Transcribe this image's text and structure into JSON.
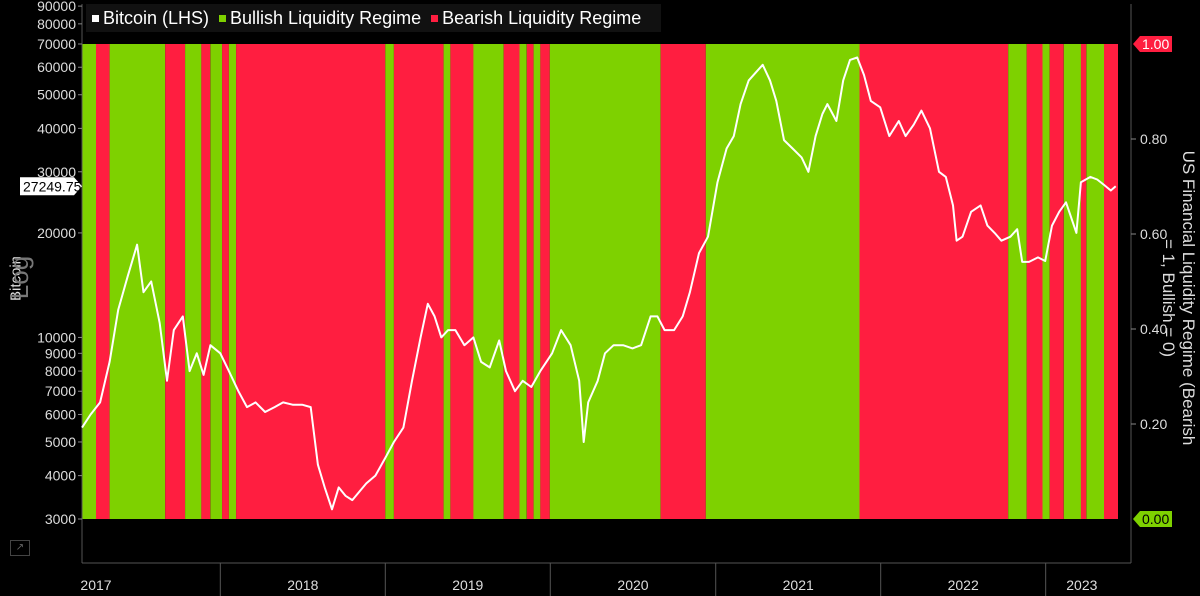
{
  "chart_data": {
    "type": "line",
    "legend": [
      {
        "name": "Bitcoin (LHS)",
        "color": "#ffffff"
      },
      {
        "name": "Bullish Liquidity Regime",
        "color": "#7ed100"
      },
      {
        "name": "Bearish Liquidity Regime",
        "color": "#ff1e40"
      }
    ],
    "left_axis": {
      "title": "Bitcoin",
      "scale_note": "Log",
      "scale": "log",
      "ylim": [
        3000,
        90000
      ],
      "ticks": [
        "90000",
        "80000",
        "70000",
        "60000",
        "50000",
        "40000",
        "30000",
        "20000",
        "10000",
        "9000",
        "8000",
        "7000",
        "6000",
        "5000",
        "4000",
        "3000"
      ],
      "last_value_label": "27249.75"
    },
    "right_axis": {
      "title": "US Financial Liquidity Regime (Bearish = 1, Bullish = 0)",
      "ticks": [
        "0.20",
        "0.40",
        "0.60",
        "0.80"
      ],
      "badge_top": "1.00",
      "badge_bottom": "0.00",
      "ylim": [
        0,
        1
      ]
    },
    "x_axis": {
      "labels": [
        "2017",
        "2018",
        "2019",
        "2020",
        "2021",
        "2022",
        "2023"
      ],
      "xlim": [
        "2017-03",
        "2023-06-10"
      ]
    },
    "regimes": [
      {
        "start": "2017-03-01",
        "end": "2017-04-01",
        "state": "bullish"
      },
      {
        "start": "2017-04-01",
        "end": "2017-05-01",
        "state": "bearish"
      },
      {
        "start": "2017-05-01",
        "end": "2017-09-01",
        "state": "bullish"
      },
      {
        "start": "2017-09-01",
        "end": "2017-10-15",
        "state": "bearish"
      },
      {
        "start": "2017-10-15",
        "end": "2017-11-20",
        "state": "bullish"
      },
      {
        "start": "2017-11-20",
        "end": "2017-12-10",
        "state": "bearish"
      },
      {
        "start": "2017-12-10",
        "end": "2018-01-05",
        "state": "bullish"
      },
      {
        "start": "2018-01-05",
        "end": "2018-01-20",
        "state": "bearish"
      },
      {
        "start": "2018-01-20",
        "end": "2018-02-05",
        "state": "bullish"
      },
      {
        "start": "2018-02-05",
        "end": "2019-01-01",
        "state": "bearish"
      },
      {
        "start": "2019-01-01",
        "end": "2019-01-20",
        "state": "bullish"
      },
      {
        "start": "2019-01-20",
        "end": "2019-05-10",
        "state": "bearish"
      },
      {
        "start": "2019-05-10",
        "end": "2019-05-25",
        "state": "bullish"
      },
      {
        "start": "2019-05-25",
        "end": "2019-07-15",
        "state": "bearish"
      },
      {
        "start": "2019-07-15",
        "end": "2019-09-20",
        "state": "bullish"
      },
      {
        "start": "2019-09-20",
        "end": "2019-10-25",
        "state": "bearish"
      },
      {
        "start": "2019-10-25",
        "end": "2019-11-10",
        "state": "bullish"
      },
      {
        "start": "2019-11-10",
        "end": "2019-11-25",
        "state": "bearish"
      },
      {
        "start": "2019-11-25",
        "end": "2019-12-10",
        "state": "bullish"
      },
      {
        "start": "2019-12-10",
        "end": "2019-12-31",
        "state": "bearish"
      },
      {
        "start": "2019-12-31",
        "end": "2020-09-01",
        "state": "bullish"
      },
      {
        "start": "2020-09-01",
        "end": "2020-12-10",
        "state": "bearish"
      },
      {
        "start": "2020-12-10",
        "end": "2021-11-15",
        "state": "bullish"
      },
      {
        "start": "2021-11-15",
        "end": "2022-10-10",
        "state": "bearish"
      },
      {
        "start": "2022-10-10",
        "end": "2022-11-20",
        "state": "bullish"
      },
      {
        "start": "2022-11-20",
        "end": "2022-12-25",
        "state": "bearish"
      },
      {
        "start": "2022-12-25",
        "end": "2023-01-10",
        "state": "bullish"
      },
      {
        "start": "2023-01-10",
        "end": "2023-02-10",
        "state": "bearish"
      },
      {
        "start": "2023-02-10",
        "end": "2023-03-20",
        "state": "bullish"
      },
      {
        "start": "2023-03-20",
        "end": "2023-04-01",
        "state": "bearish"
      },
      {
        "start": "2023-04-01",
        "end": "2023-05-10",
        "state": "bullish"
      },
      {
        "start": "2023-05-10",
        "end": "2023-06-10",
        "state": "bearish"
      }
    ],
    "series": [
      {
        "name": "Bitcoin (LHS)",
        "points": [
          [
            "2017-03-01",
            5500
          ],
          [
            "2017-03-20",
            6000
          ],
          [
            "2017-04-10",
            6500
          ],
          [
            "2017-05-01",
            8500
          ],
          [
            "2017-05-20",
            12000
          ],
          [
            "2017-06-10",
            15000
          ],
          [
            "2017-07-01",
            18500
          ],
          [
            "2017-07-15",
            13500
          ],
          [
            "2017-08-01",
            14500
          ],
          [
            "2017-08-20",
            11000
          ],
          [
            "2017-09-05",
            7500
          ],
          [
            "2017-09-20",
            10500
          ],
          [
            "2017-10-10",
            11500
          ],
          [
            "2017-10-25",
            8000
          ],
          [
            "2017-11-10",
            9000
          ],
          [
            "2017-11-25",
            7800
          ],
          [
            "2017-12-10",
            9500
          ],
          [
            "2018-01-01",
            9000
          ],
          [
            "2018-01-20",
            8000
          ],
          [
            "2018-02-10",
            7000
          ],
          [
            "2018-03-01",
            6300
          ],
          [
            "2018-03-20",
            6500
          ],
          [
            "2018-04-10",
            6100
          ],
          [
            "2018-05-01",
            6300
          ],
          [
            "2018-05-20",
            6500
          ],
          [
            "2018-06-10",
            6400
          ],
          [
            "2018-07-01",
            6400
          ],
          [
            "2018-07-20",
            6300
          ],
          [
            "2018-08-05",
            4300
          ],
          [
            "2018-08-20",
            3700
          ],
          [
            "2018-09-05",
            3200
          ],
          [
            "2018-09-20",
            3700
          ],
          [
            "2018-10-05",
            3500
          ],
          [
            "2018-10-20",
            3400
          ],
          [
            "2018-11-05",
            3600
          ],
          [
            "2018-11-20",
            3800
          ],
          [
            "2018-12-10",
            4000
          ],
          [
            "2019-01-01",
            4500
          ],
          [
            "2019-01-20",
            5000
          ],
          [
            "2019-02-10",
            5500
          ],
          [
            "2019-03-01",
            7500
          ],
          [
            "2019-03-20",
            10000
          ],
          [
            "2019-04-05",
            12500
          ],
          [
            "2019-04-20",
            11500
          ],
          [
            "2019-05-05",
            10000
          ],
          [
            "2019-05-20",
            10500
          ],
          [
            "2019-06-05",
            10500
          ],
          [
            "2019-06-25",
            9500
          ],
          [
            "2019-07-15",
            10000
          ],
          [
            "2019-08-01",
            8500
          ],
          [
            "2019-08-20",
            8200
          ],
          [
            "2019-09-10",
            9800
          ],
          [
            "2019-09-25",
            8000
          ],
          [
            "2019-10-15",
            7000
          ],
          [
            "2019-11-01",
            7500
          ],
          [
            "2019-11-20",
            7200
          ],
          [
            "2019-12-10",
            8000
          ],
          [
            "2020-01-05",
            9000
          ],
          [
            "2020-01-25",
            10500
          ],
          [
            "2020-02-15",
            9500
          ],
          [
            "2020-03-05",
            7500
          ],
          [
            "2020-03-15",
            5000
          ],
          [
            "2020-03-25",
            6500
          ],
          [
            "2020-04-15",
            7500
          ],
          [
            "2020-05-01",
            9000
          ],
          [
            "2020-05-20",
            9500
          ],
          [
            "2020-06-10",
            9500
          ],
          [
            "2020-07-01",
            9300
          ],
          [
            "2020-07-20",
            9500
          ],
          [
            "2020-08-10",
            11500
          ],
          [
            "2020-08-25",
            11500
          ],
          [
            "2020-09-10",
            10500
          ],
          [
            "2020-10-01",
            10500
          ],
          [
            "2020-10-20",
            11500
          ],
          [
            "2020-11-05",
            13500
          ],
          [
            "2020-11-25",
            17500
          ],
          [
            "2020-12-15",
            19500
          ],
          [
            "2021-01-05",
            28000
          ],
          [
            "2021-01-25",
            35000
          ],
          [
            "2021-02-10",
            38000
          ],
          [
            "2021-02-25",
            47000
          ],
          [
            "2021-03-15",
            55000
          ],
          [
            "2021-04-05",
            59000
          ],
          [
            "2021-04-15",
            61000
          ],
          [
            "2021-05-01",
            55000
          ],
          [
            "2021-05-15",
            48000
          ],
          [
            "2021-06-01",
            37000
          ],
          [
            "2021-06-20",
            35000
          ],
          [
            "2021-07-10",
            33000
          ],
          [
            "2021-07-25",
            30000
          ],
          [
            "2021-08-10",
            38000
          ],
          [
            "2021-08-25",
            44000
          ],
          [
            "2021-09-05",
            47000
          ],
          [
            "2021-09-25",
            42000
          ],
          [
            "2021-10-10",
            55000
          ],
          [
            "2021-10-25",
            63000
          ],
          [
            "2021-11-10",
            64000
          ],
          [
            "2021-11-25",
            57000
          ],
          [
            "2021-12-10",
            48000
          ],
          [
            "2021-12-31",
            46000
          ],
          [
            "2022-01-20",
            38000
          ],
          [
            "2022-02-10",
            42000
          ],
          [
            "2022-02-25",
            38000
          ],
          [
            "2022-03-15",
            41000
          ],
          [
            "2022-04-01",
            45000
          ],
          [
            "2022-04-20",
            40000
          ],
          [
            "2022-05-10",
            30000
          ],
          [
            "2022-05-25",
            29000
          ],
          [
            "2022-06-10",
            24000
          ],
          [
            "2022-06-18",
            19000
          ],
          [
            "2022-07-01",
            19500
          ],
          [
            "2022-07-20",
            23000
          ],
          [
            "2022-08-10",
            24000
          ],
          [
            "2022-08-25",
            21000
          ],
          [
            "2022-09-10",
            20000
          ],
          [
            "2022-09-25",
            19000
          ],
          [
            "2022-10-15",
            19500
          ],
          [
            "2022-10-30",
            20500
          ],
          [
            "2022-11-10",
            16500
          ],
          [
            "2022-11-25",
            16500
          ],
          [
            "2022-12-15",
            17000
          ],
          [
            "2022-12-31",
            16600
          ],
          [
            "2023-01-15",
            21000
          ],
          [
            "2023-01-31",
            23000
          ],
          [
            "2023-02-15",
            24500
          ],
          [
            "2023-03-10",
            20000
          ],
          [
            "2023-03-20",
            28000
          ],
          [
            "2023-04-10",
            29000
          ],
          [
            "2023-04-25",
            28500
          ],
          [
            "2023-05-10",
            27500
          ],
          [
            "2023-05-25",
            26500
          ],
          [
            "2023-06-05",
            27250
          ]
        ]
      }
    ]
  }
}
